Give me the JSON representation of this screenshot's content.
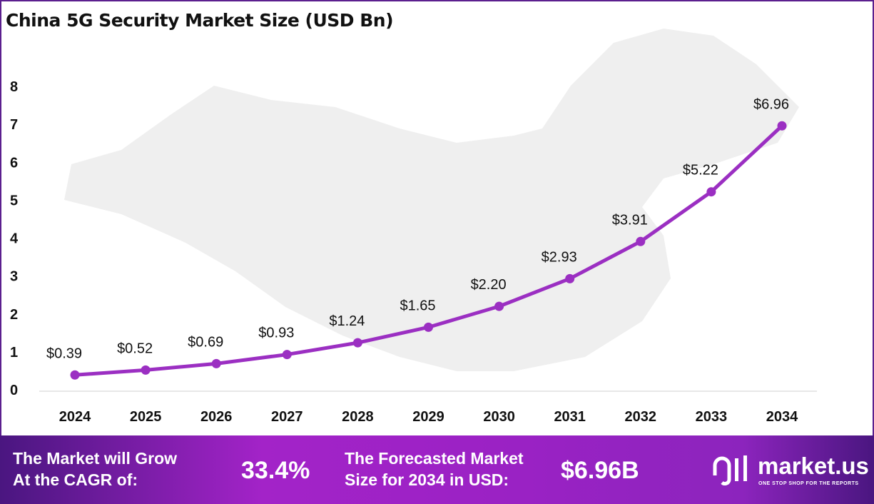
{
  "chart_data": {
    "type": "line",
    "title": "China 5G Security Market Size (USD Bn)",
    "categories": [
      "2024",
      "2025",
      "2026",
      "2027",
      "2028",
      "2029",
      "2030",
      "2031",
      "2032",
      "2033",
      "2034"
    ],
    "values": [
      0.39,
      0.52,
      0.69,
      0.93,
      1.24,
      1.65,
      2.2,
      2.93,
      3.91,
      5.22,
      6.96
    ],
    "data_labels": [
      "$0.39",
      "$0.52",
      "$0.69",
      "$0.93",
      "$1.24",
      "$1.65",
      "$2.20",
      "$2.93",
      "$3.91",
      "$5.22",
      "$6.96"
    ],
    "yticks": [
      0,
      1,
      2,
      3,
      4,
      5,
      6,
      7,
      8
    ],
    "ylim": [
      0,
      8
    ],
    "grid": false,
    "line_color": "#9b2fc2"
  },
  "banner": {
    "cagr_label_1": "The Market will Grow",
    "cagr_label_2": "At the CAGR of:",
    "cagr_value": "33.4%",
    "forecast_label_1": "The Forecasted Market",
    "forecast_label_2": "Size for 2034 in USD:",
    "forecast_value": "$6.96B",
    "logo_name": "market.us",
    "logo_tagline": "ONE STOP SHOP FOR THE REPORTS"
  }
}
